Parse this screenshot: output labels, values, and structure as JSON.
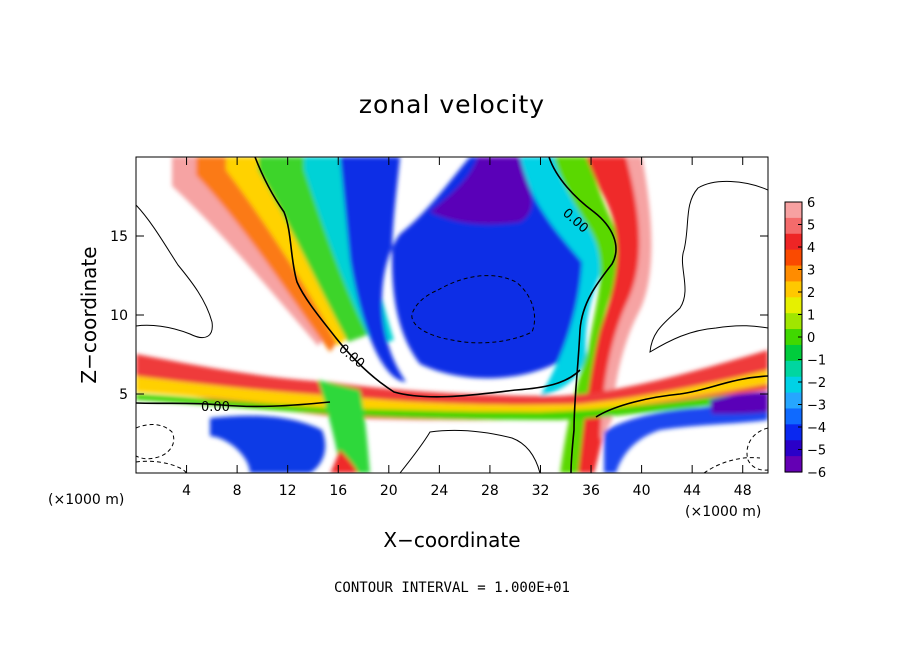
{
  "chart_data": {
    "type": "heatmap",
    "title": "zonal velocity",
    "xlabel": "X−coordinate",
    "ylabel": "Z−coordinate",
    "x_unit": "(×1000 m)",
    "y_unit": "(×1000 m)",
    "footer": "CONTOUR INTERVAL = 1.000E+01",
    "xlim": [
      0,
      50
    ],
    "ylim": [
      0,
      20
    ],
    "x_ticks": [
      {
        "v": 4,
        "label": "4"
      },
      {
        "v": 8,
        "label": "8"
      },
      {
        "v": 12,
        "label": "12"
      },
      {
        "v": 16,
        "label": "16"
      },
      {
        "v": 20,
        "label": "20"
      },
      {
        "v": 24,
        "label": "24"
      },
      {
        "v": 28,
        "label": "28"
      },
      {
        "v": 32,
        "label": "32"
      },
      {
        "v": 36,
        "label": "36"
      },
      {
        "v": 40,
        "label": "40"
      },
      {
        "v": 44,
        "label": "44"
      },
      {
        "v": 48,
        "label": "48"
      }
    ],
    "y_ticks": [
      {
        "v": 5,
        "label": "5"
      },
      {
        "v": 10,
        "label": "10"
      },
      {
        "v": 15,
        "label": "15"
      }
    ],
    "colorbar": {
      "min": -6,
      "max": 6,
      "labels": [
        "6",
        "5",
        "4",
        "3",
        "2",
        "1",
        "0",
        "−1",
        "−2",
        "−3",
        "−4",
        "−5",
        "−6"
      ],
      "colors": [
        "#f7a1a1",
        "#f46b6b",
        "#ee2525",
        "#fa4a00",
        "#ff8c00",
        "#ffc800",
        "#e6f000",
        "#a0e600",
        "#40d800",
        "#00cc3c",
        "#00d6a0",
        "#00d2e6",
        "#26a6ff",
        "#0f6aff",
        "#0a28f0",
        "#2a00c8",
        "#6400b4"
      ]
    },
    "contour_labels": [
      "0.00",
      "0.00",
      "0.00"
    ]
  }
}
